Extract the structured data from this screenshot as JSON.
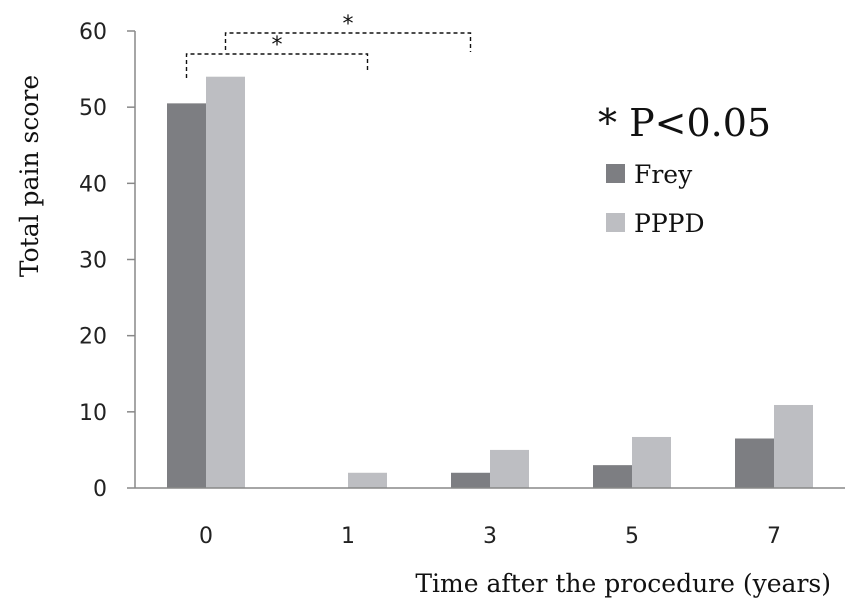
{
  "chart_data": {
    "type": "bar",
    "title": "",
    "xlabel": "Time after the procedure (years)",
    "ylabel": "Total pain score",
    "categories": [
      "0",
      "1",
      "3",
      "5",
      "7"
    ],
    "series": [
      {
        "name": "Frey",
        "values": [
          50.5,
          0,
          2,
          3,
          6.5
        ],
        "color": "#7d7e82"
      },
      {
        "name": "PPPD",
        "values": [
          54,
          2,
          5,
          6.7,
          10.9
        ],
        "color": "#bdbec2"
      }
    ],
    "ylim": [
      0,
      60
    ],
    "yticks": [
      "0",
      "10",
      "20",
      "30",
      "40",
      "50",
      "60"
    ],
    "grid": false,
    "legend_position": "right",
    "significance_note": "* P<0.05",
    "significance_brackets": [
      {
        "from": "0",
        "to": "1",
        "label": "*"
      },
      {
        "from": "0",
        "to": "3",
        "label": "*"
      }
    ]
  }
}
